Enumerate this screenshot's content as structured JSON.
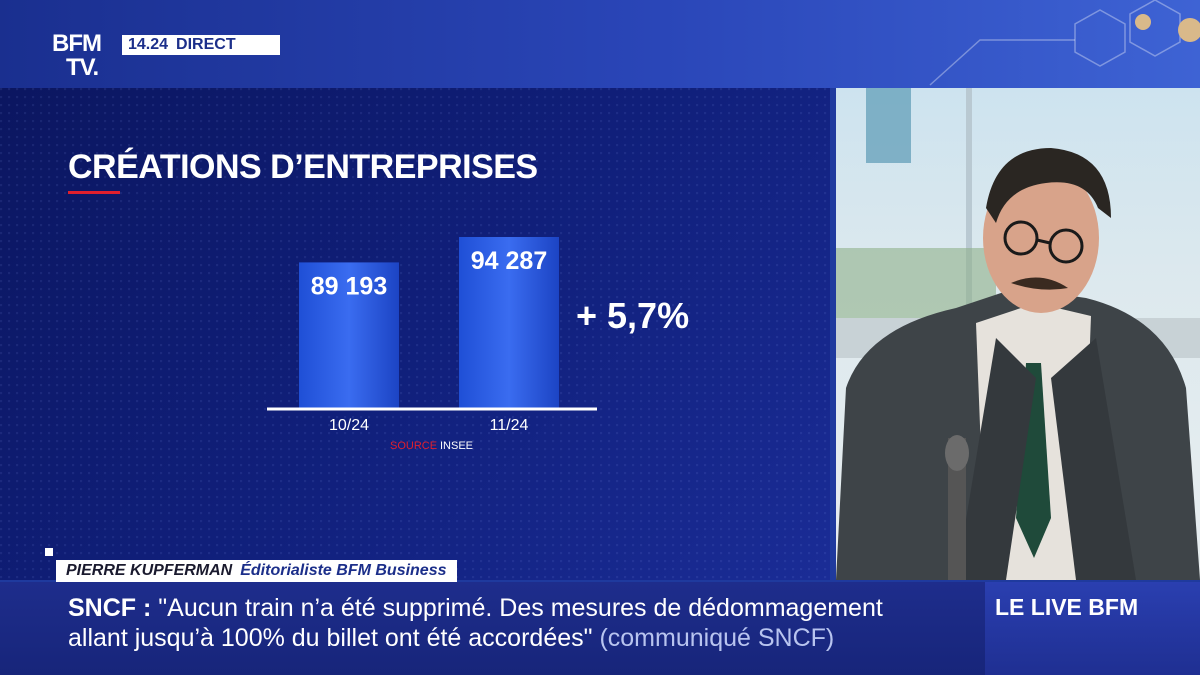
{
  "channel": {
    "logo_line1": "BFM",
    "logo_line2": "TV.",
    "time": "14.24",
    "status": "DIRECT"
  },
  "graphic": {
    "title": "CRÉATIONS D’ENTREPRISES",
    "source_label": "SOURCE",
    "source_name": "INSEE",
    "change_label": "+ 5,7%"
  },
  "chart_data": {
    "type": "bar",
    "title": "CRÉATIONS D’ENTREPRISES",
    "categories": [
      "10/24",
      "11/24"
    ],
    "values": [
      89193,
      94287
    ],
    "value_labels": [
      "89 193",
      "94 287"
    ],
    "ylim": [
      0,
      100000
    ],
    "annotation": "+ 5,7%",
    "source": "SOURCE INSEE",
    "bar_color": "#2c5ae8"
  },
  "lower_third": {
    "name": "PIERRE KUPFERMAN",
    "role": "Éditorialiste BFM Business"
  },
  "ticker": {
    "label": "SNCF :",
    "line1": "\"Aucun train n’a été supprimé. Des mesures de dédommagement",
    "line2": "allant jusqu’à 100% du billet ont été accordées\"",
    "credit": "(communiqué SNCF)"
  },
  "live": {
    "label": "LE LIVE BFM"
  },
  "colors": {
    "accent_red": "#e01f2d",
    "brand_blue": "#1c2f8a"
  }
}
